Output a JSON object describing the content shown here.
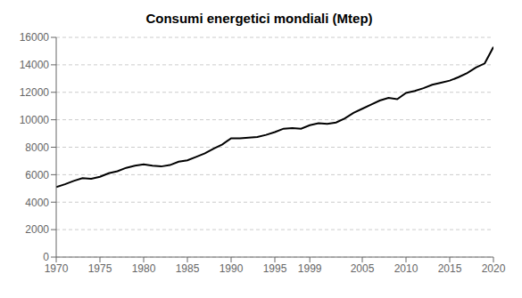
{
  "chart_data": {
    "type": "line",
    "title": "Consumi energetici mondiali (Mtep)",
    "x": [
      1970,
      1971,
      1972,
      1973,
      1974,
      1975,
      1976,
      1977,
      1978,
      1979,
      1980,
      1981,
      1982,
      1983,
      1984,
      1985,
      1986,
      1987,
      1988,
      1989,
      1990,
      1991,
      1992,
      1993,
      1994,
      1995,
      1996,
      1997,
      1998,
      1999,
      2000,
      2001,
      2002,
      2003,
      2004,
      2005,
      2006,
      2007,
      2008,
      2009,
      2010,
      2011,
      2012,
      2013,
      2014,
      2015,
      2016,
      2017,
      2018,
      2019,
      2020
    ],
    "values": [
      5100,
      5300,
      5550,
      5750,
      5700,
      5850,
      6100,
      6250,
      6500,
      6650,
      6750,
      6650,
      6600,
      6700,
      6950,
      7050,
      7300,
      7550,
      7900,
      8200,
      8650,
      8650,
      8700,
      8750,
      8900,
      9100,
      9350,
      9400,
      9350,
      9600,
      9750,
      9700,
      9800,
      10100,
      10500,
      10800,
      11100,
      11400,
      11600,
      11500,
      11950,
      12100,
      12300,
      12550,
      12700,
      12850,
      13100,
      13400,
      13800,
      14100,
      15300
    ],
    "color": "#000000",
    "xlim": [
      1970,
      2020
    ],
    "ylim": [
      0,
      16000
    ],
    "xticks": [
      1970,
      1975,
      1980,
      1985,
      1990,
      1995,
      1999,
      2005,
      2010,
      2015,
      2020
    ],
    "yticks": [
      0,
      2000,
      4000,
      6000,
      8000,
      10000,
      12000,
      14000,
      16000
    ],
    "grid": true
  }
}
